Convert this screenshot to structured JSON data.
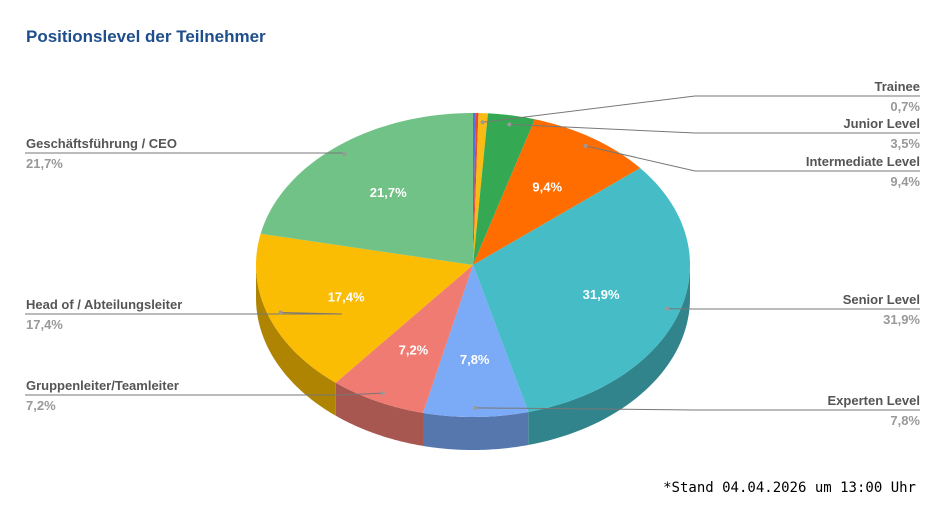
{
  "chart_data": {
    "type": "pie",
    "style": "3d",
    "title": "Positionslevel der Teilnehmer",
    "slices": [
      {
        "label": "",
        "value": 0.2,
        "color": "#5b6fd6",
        "show_label": false
      },
      {
        "label": "",
        "value": 0.2,
        "color": "#e8453c",
        "show_label": false
      },
      {
        "label": "Trainee",
        "value": 0.7,
        "value_label": "0,7%",
        "color": "#f9bc15",
        "side": "right",
        "inner": false
      },
      {
        "label": "Junior Level",
        "value": 3.5,
        "value_label": "3,5%",
        "color": "#34a853",
        "side": "right",
        "inner": false
      },
      {
        "label": "Intermediate Level",
        "value": 9.4,
        "value_label": "9,4%",
        "color": "#ff6d01",
        "side": "right",
        "inner": true
      },
      {
        "label": "Senior Level",
        "value": 31.9,
        "value_label": "31,9%",
        "color": "#46bdc6",
        "side": "right",
        "inner": true
      },
      {
        "label": "Experten Level",
        "value": 7.8,
        "value_label": "7,8%",
        "color": "#7baaf7",
        "side": "right",
        "inner": true
      },
      {
        "label": "Gruppenleiter/Teamleiter",
        "value": 7.2,
        "value_label": "7,2%",
        "color": "#f07b72",
        "side": "left",
        "inner": true
      },
      {
        "label": "Head of / Abteilungsleiter",
        "value": 17.4,
        "value_label": "17,4%",
        "color": "#fbbc04",
        "side": "left",
        "inner": true
      },
      {
        "label": "Geschäftsführung / CEO",
        "value": 21.7,
        "value_label": "21,7%",
        "color": "#71c287",
        "side": "left",
        "inner": true
      }
    ],
    "legend": "labels with leader lines"
  },
  "footnote": "*Stand 04.04.2026 um 13:00 Uhr"
}
